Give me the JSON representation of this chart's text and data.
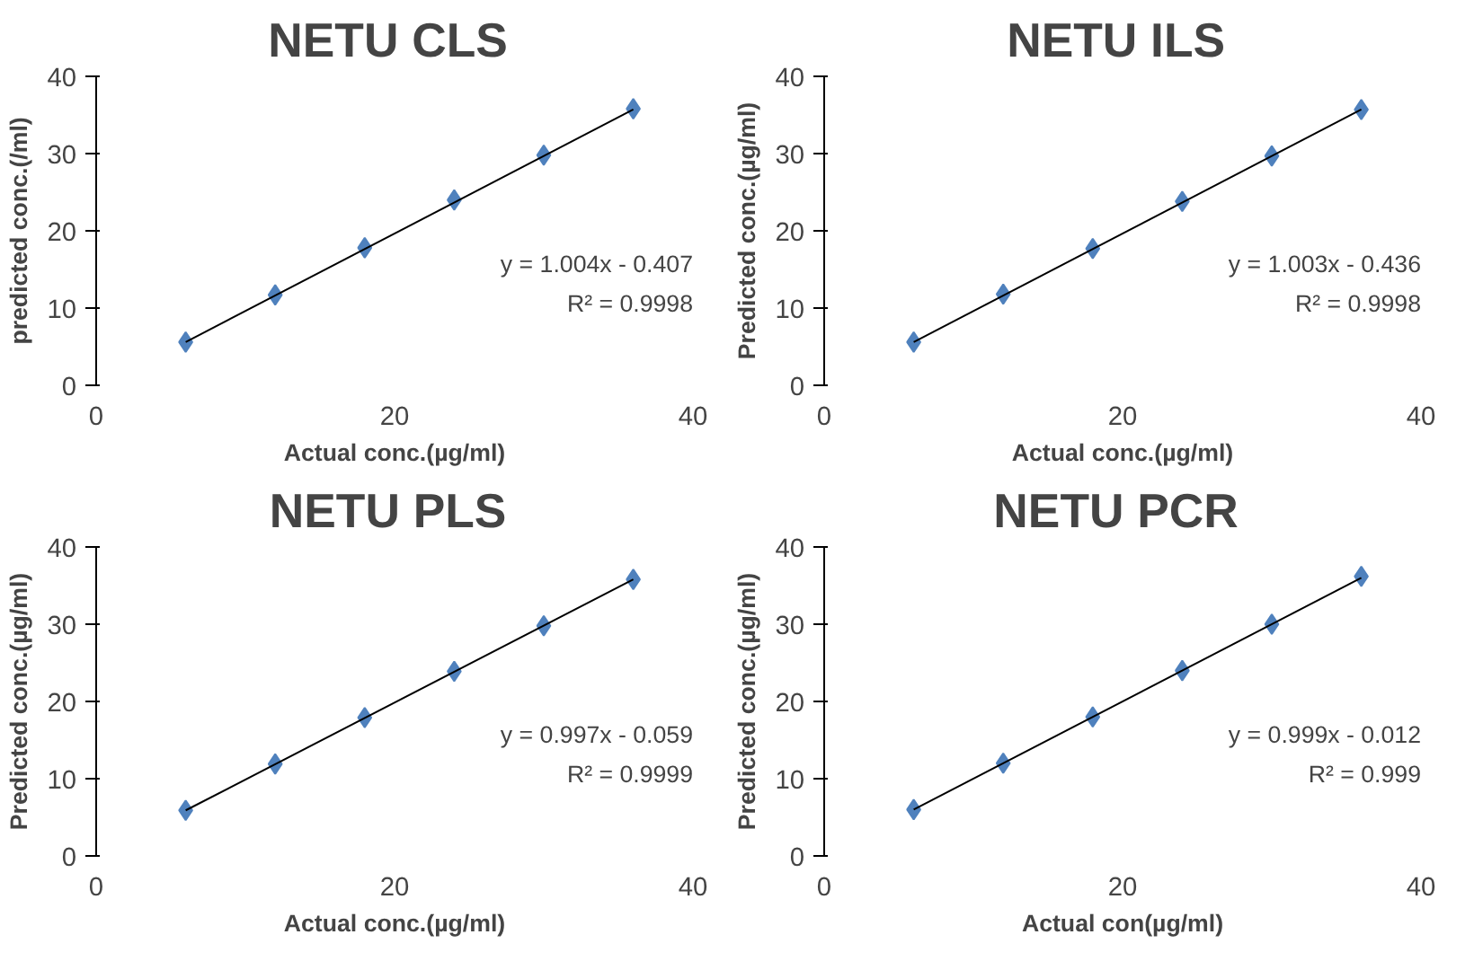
{
  "chart_data": [
    {
      "type": "scatter",
      "title": "NETU  CLS",
      "xlabel": "Actual conc.(µg/ml)",
      "ylabel": "predicted conc.(/ml)",
      "xlim": [
        0,
        40
      ],
      "xticks": [
        0,
        20,
        40
      ],
      "ylim": [
        0,
        40
      ],
      "yticks": [
        0,
        10,
        20,
        30,
        40
      ],
      "marker": "diamond",
      "annotations": [
        "y = 1.004x - 0.407",
        "R² = 0.9998"
      ],
      "series": [
        {
          "color": "#4f81bd",
          "x": [
            6,
            12,
            18,
            24,
            30,
            36
          ],
          "values": [
            5.6,
            11.7,
            17.8,
            24,
            29.8,
            35.8
          ]
        },
        {
          "type": "line",
          "marker": "none",
          "color": "#000000",
          "x": [
            6,
            36
          ],
          "values": [
            5.6,
            35.7
          ]
        }
      ]
    },
    {
      "type": "scatter",
      "title": "NETU  ILS",
      "xlabel": "Actual conc.(µg/ml)",
      "ylabel": "Predicted conc.(µg/ml)",
      "xlim": [
        0,
        40
      ],
      "xticks": [
        0,
        20,
        40
      ],
      "ylim": [
        0,
        40
      ],
      "yticks": [
        0,
        10,
        20,
        30,
        40
      ],
      "marker": "diamond",
      "annotations": [
        "y = 1.003x - 0.436",
        "R² = 0.9998"
      ],
      "series": [
        {
          "color": "#4f81bd",
          "x": [
            6,
            12,
            18,
            24,
            30,
            36
          ],
          "values": [
            5.6,
            11.8,
            17.7,
            23.8,
            29.7,
            35.7
          ]
        },
        {
          "type": "line",
          "marker": "none",
          "color": "#000000",
          "x": [
            6,
            36
          ],
          "values": [
            5.6,
            35.7
          ]
        }
      ]
    },
    {
      "type": "scatter",
      "title": "NETU  PLS",
      "xlabel": "Actual conc.(µg/ml)",
      "ylabel": "Predicted conc.(µg/ml)",
      "xlim": [
        0,
        40
      ],
      "xticks": [
        0,
        20,
        40
      ],
      "ylim": [
        0,
        40
      ],
      "yticks": [
        0,
        10,
        20,
        30,
        40
      ],
      "marker": "diamond",
      "annotations": [
        "y = 0.997x - 0.059",
        "R² = 0.9999"
      ],
      "series": [
        {
          "color": "#4f81bd",
          "x": [
            6,
            12,
            18,
            24,
            30,
            36
          ],
          "values": [
            5.9,
            11.9,
            17.9,
            23.9,
            29.8,
            35.8
          ]
        },
        {
          "type": "line",
          "marker": "none",
          "color": "#000000",
          "x": [
            6,
            36
          ],
          "values": [
            5.9,
            35.8
          ]
        }
      ]
    },
    {
      "type": "scatter",
      "title": "NETU  PCR",
      "xlabel": "Actual con(µg/ml)",
      "ylabel": "Predicted conc.(µg/ml)",
      "xlim": [
        0,
        40
      ],
      "xticks": [
        0,
        20,
        40
      ],
      "ylim": [
        0,
        40
      ],
      "yticks": [
        0,
        10,
        20,
        30,
        40
      ],
      "marker": "diamond",
      "annotations": [
        "y = 0.999x - 0.012",
        "R² = 0.999"
      ],
      "series": [
        {
          "color": "#4f81bd",
          "x": [
            6,
            12,
            18,
            24,
            30,
            36
          ],
          "values": [
            6,
            12,
            18,
            24,
            30,
            36.2
          ]
        },
        {
          "type": "line",
          "marker": "none",
          "color": "#000000",
          "x": [
            6,
            36
          ],
          "values": [
            6,
            36
          ]
        }
      ]
    }
  ]
}
